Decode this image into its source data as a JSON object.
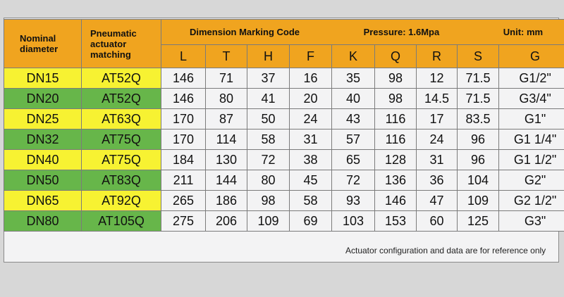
{
  "header": {
    "nominal_diameter": "Nominal diameter",
    "actuator_matching": "Pneumatic actuator matching",
    "dimension_code": "Dimension Marking Code",
    "pressure": "Pressure: 1.6Mpa",
    "unit": "Unit: mm"
  },
  "columns": [
    "L",
    "T",
    "H",
    "F",
    "K",
    "Q",
    "R",
    "S",
    "G"
  ],
  "rows": [
    {
      "dn": "DN15",
      "actuator": "AT52Q",
      "values": [
        "146",
        "71",
        "37",
        "16",
        "35",
        "98",
        "12",
        "71.5",
        "G1/2\""
      ],
      "color": "#f7f232"
    },
    {
      "dn": "DN20",
      "actuator": "AT52Q",
      "values": [
        "146",
        "80",
        "41",
        "20",
        "40",
        "98",
        "14.5",
        "71.5",
        "G3/4\""
      ],
      "color": "#67b64a"
    },
    {
      "dn": "DN25",
      "actuator": "AT63Q",
      "values": [
        "170",
        "87",
        "50",
        "24",
        "43",
        "116",
        "17",
        "83.5",
        "G1\""
      ],
      "color": "#f7f232"
    },
    {
      "dn": "DN32",
      "actuator": "AT75Q",
      "values": [
        "170",
        "114",
        "58",
        "31",
        "57",
        "116",
        "24",
        "96",
        "G1 1/4\""
      ],
      "color": "#67b64a"
    },
    {
      "dn": "DN40",
      "actuator": "AT75Q",
      "values": [
        "184",
        "130",
        "72",
        "38",
        "65",
        "128",
        "31",
        "96",
        "G1 1/2\""
      ],
      "color": "#f7f232"
    },
    {
      "dn": "DN50",
      "actuator": "AT83Q",
      "values": [
        "211",
        "144",
        "80",
        "45",
        "72",
        "136",
        "36",
        "104",
        "G2\""
      ],
      "color": "#67b64a"
    },
    {
      "dn": "DN65",
      "actuator": "AT92Q",
      "values": [
        "265",
        "186",
        "98",
        "58",
        "93",
        "146",
        "47",
        "109",
        "G2 1/2\""
      ],
      "color": "#f7f232"
    },
    {
      "dn": "DN80",
      "actuator": "AT105Q",
      "values": [
        "275",
        "206",
        "109",
        "69",
        "103",
        "153",
        "60",
        "125",
        "G3\""
      ],
      "color": "#67b64a"
    }
  ],
  "note": "Actuator configuration and data are for reference only",
  "colors": {
    "header": "#f0a41f",
    "yellow": "#f7f232",
    "green": "#67b64a",
    "cell": "#f3f3f4"
  }
}
